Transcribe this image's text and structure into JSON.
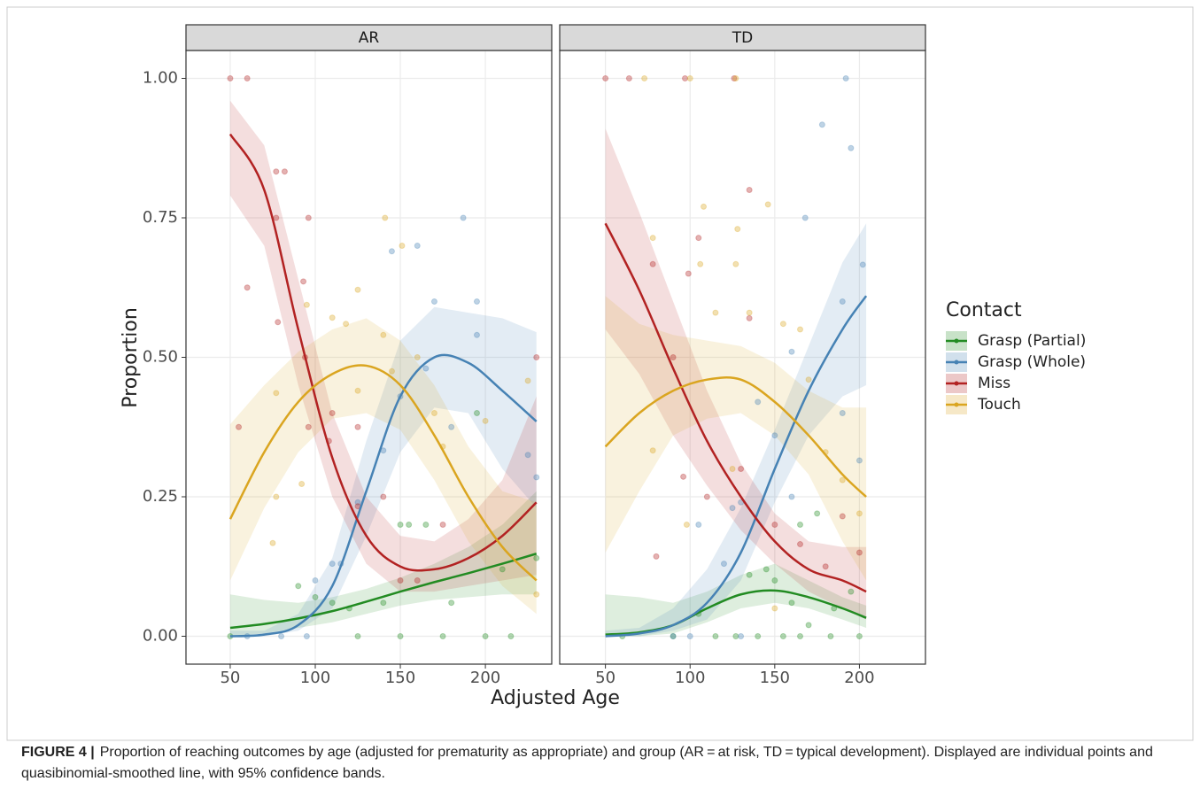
{
  "figure": {
    "x_label": "Adjusted Age",
    "y_label": "Proportion",
    "legend_title": "Contact",
    "caption_label": "FIGURE 4 |",
    "caption": "Proportion of reaching outcomes by age (adjusted for prematurity as appropriate) and group (AR = at risk, TD = typical development). Displayed are individual points and quasibinomial-smoothed line, with 95% confidence bands."
  },
  "chart_data": [
    {
      "type": "line",
      "panel": "AR",
      "xlim": [
        24,
        239
      ],
      "ylim": [
        -0.05,
        1.05
      ],
      "grid": true,
      "xticks": [
        50,
        100,
        150,
        200
      ],
      "yticks": [
        {
          "value": 0,
          "label": "0.00"
        },
        {
          "value": 0.25,
          "label": "0.25"
        },
        {
          "value": 0.5,
          "label": "0.50"
        },
        {
          "value": 0.75,
          "label": "0.75"
        },
        {
          "value": 1,
          "label": "1.00"
        }
      ],
      "x": [
        50,
        70,
        90,
        110,
        130,
        150,
        170,
        190,
        210,
        230
      ],
      "series": [
        {
          "name": "Grasp (Partial)",
          "color": "#228b22",
          "values": [
            0.015,
            0.022,
            0.032,
            0.045,
            0.062,
            0.08,
            0.097,
            0.113,
            0.13,
            0.148
          ],
          "lower": [
            0,
            0.005,
            0.015,
            0.025,
            0.04,
            0.055,
            0.065,
            0.07,
            0.075,
            0.075
          ],
          "upper": [
            0.075,
            0.065,
            0.06,
            0.07,
            0.085,
            0.105,
            0.13,
            0.16,
            0.2,
            0.26
          ],
          "points_x": [
            90,
            100,
            110,
            120,
            140,
            150,
            155,
            165,
            180,
            195,
            210,
            230,
            125,
            150,
            175,
            200,
            215,
            50
          ],
          "points_y": [
            0.09,
            0.07,
            0.06,
            0.05,
            0.06,
            0.2,
            0.2,
            0.2,
            0.06,
            0.4,
            0.12,
            0.14,
            0,
            0,
            0,
            0,
            0,
            0
          ]
        },
        {
          "name": "Grasp (Whole)",
          "color": "#4682b4",
          "values": [
            0,
            0.003,
            0.02,
            0.09,
            0.26,
            0.43,
            0.5,
            0.49,
            0.44,
            0.385
          ],
          "lower": [
            0,
            0,
            0.01,
            0.05,
            0.18,
            0.33,
            0.41,
            0.4,
            0.3,
            0.23
          ],
          "upper": [
            0.01,
            0.01,
            0.04,
            0.14,
            0.35,
            0.53,
            0.59,
            0.58,
            0.57,
            0.545
          ],
          "points_x": [
            145,
            160,
            187,
            195,
            170,
            195,
            165,
            140,
            150,
            110,
            115,
            125,
            180,
            225,
            230,
            100,
            60,
            80,
            95
          ],
          "points_y": [
            0.69,
            0.7,
            0.75,
            0.6,
            0.6,
            0.54,
            0.48,
            0.333,
            0.43,
            0.13,
            0.13,
            0.24,
            0.375,
            0.325,
            0.285,
            0.1,
            0,
            0,
            0
          ]
        },
        {
          "name": "Miss",
          "color": "#b22222",
          "values": [
            0.9,
            0.8,
            0.55,
            0.32,
            0.18,
            0.125,
            0.12,
            0.14,
            0.18,
            0.24
          ],
          "lower": [
            0.79,
            0.7,
            0.45,
            0.25,
            0.13,
            0.08,
            0.08,
            0.09,
            0.1,
            0.11
          ],
          "upper": [
            0.96,
            0.88,
            0.64,
            0.4,
            0.25,
            0.18,
            0.17,
            0.21,
            0.28,
            0.43
          ],
          "points_x": [
            50,
            60,
            60,
            77,
            77,
            82,
            78,
            93,
            96,
            94,
            96,
            108,
            110,
            125,
            125,
            140,
            150,
            160,
            175,
            230,
            55
          ],
          "points_y": [
            1,
            1,
            0.625,
            0.833,
            0.75,
            0.833,
            0.563,
            0.636,
            0.75,
            0.5,
            0.375,
            0.35,
            0.4,
            0.233,
            0.375,
            0.25,
            0.1,
            0.1,
            0.2,
            0.5,
            0.375
          ]
        },
        {
          "name": "Touch",
          "color": "#daa520",
          "values": [
            0.21,
            0.33,
            0.42,
            0.47,
            0.485,
            0.45,
            0.36,
            0.25,
            0.16,
            0.1
          ],
          "lower": [
            0.1,
            0.23,
            0.33,
            0.39,
            0.4,
            0.37,
            0.28,
            0.17,
            0.09,
            0.04
          ],
          "upper": [
            0.38,
            0.45,
            0.51,
            0.55,
            0.57,
            0.53,
            0.45,
            0.34,
            0.26,
            0.24
          ],
          "points_x": [
            77,
            77,
            75,
            92,
            95,
            110,
            125,
            125,
            141,
            151,
            140,
            145,
            160,
            170,
            175,
            200,
            225,
            230,
            118
          ],
          "points_y": [
            0.436,
            0.25,
            0.167,
            0.273,
            0.594,
            0.571,
            0.621,
            0.44,
            0.75,
            0.7,
            0.54,
            0.475,
            0.5,
            0.4,
            0.34,
            0.386,
            0.458,
            0.075,
            0.56
          ]
        }
      ]
    },
    {
      "type": "line",
      "panel": "TD",
      "xlim": [
        23,
        239
      ],
      "ylim": [
        -0.05,
        1.05
      ],
      "grid": true,
      "xticks": [
        50,
        100,
        150,
        200
      ],
      "x": [
        50,
        70,
        90,
        110,
        130,
        150,
        170,
        190,
        204
      ],
      "series": [
        {
          "name": "Grasp (Partial)",
          "color": "#228b22",
          "values": [
            0.003,
            0.007,
            0.02,
            0.05,
            0.075,
            0.082,
            0.07,
            0.05,
            0.033
          ],
          "lower": [
            0,
            0,
            0.005,
            0.025,
            0.05,
            0.06,
            0.05,
            0.03,
            0.015
          ],
          "upper": [
            0.075,
            0.07,
            0.06,
            0.08,
            0.11,
            0.13,
            0.1,
            0.07,
            0.055
          ],
          "points_x": [
            135,
            145,
            160,
            170,
            150,
            165,
            105,
            175,
            185,
            195,
            115,
            127,
            140,
            155,
            165,
            183,
            200,
            90,
            60
          ],
          "points_y": [
            0.11,
            0.12,
            0.06,
            0.02,
            0.1,
            0.2,
            0.04,
            0.22,
            0.05,
            0.08,
            0,
            0,
            0,
            0,
            0,
            0,
            0,
            0,
            0
          ]
        },
        {
          "name": "Grasp (Whole)",
          "color": "#4682b4",
          "values": [
            0,
            0.005,
            0.02,
            0.06,
            0.15,
            0.3,
            0.44,
            0.55,
            0.61
          ],
          "lower": [
            0,
            0,
            0.01,
            0.03,
            0.1,
            0.24,
            0.36,
            0.43,
            0.45
          ],
          "upper": [
            0.01,
            0.015,
            0.05,
            0.12,
            0.23,
            0.37,
            0.52,
            0.67,
            0.74
          ],
          "points_x": [
            178,
            195,
            192,
            168,
            202,
            190,
            160,
            150,
            140,
            130,
            125,
            120,
            105,
            160,
            190,
            200,
            90,
            100,
            130
          ],
          "points_y": [
            0.917,
            0.875,
            1,
            0.75,
            0.666,
            0.6,
            0.51,
            0.36,
            0.42,
            0.24,
            0.23,
            0.13,
            0.2,
            0.25,
            0.4,
            0.315,
            0,
            0,
            0
          ]
        },
        {
          "name": "Miss",
          "color": "#b22222",
          "values": [
            0.74,
            0.62,
            0.48,
            0.35,
            0.25,
            0.17,
            0.12,
            0.1,
            0.08
          ],
          "lower": [
            0.55,
            0.47,
            0.36,
            0.27,
            0.19,
            0.13,
            0.08,
            0.05,
            0.03
          ],
          "upper": [
            0.91,
            0.76,
            0.6,
            0.44,
            0.31,
            0.22,
            0.17,
            0.16,
            0.16
          ],
          "points_x": [
            50,
            64,
            97,
            126,
            78,
            105,
            99,
            135,
            90,
            110,
            130,
            150,
            165,
            180,
            190,
            200,
            96,
            80,
            135
          ],
          "points_y": [
            1,
            1,
            1,
            1,
            0.667,
            0.714,
            0.65,
            0.8,
            0.5,
            0.25,
            0.3,
            0.2,
            0.165,
            0.125,
            0.215,
            0.15,
            0.286,
            0.143,
            0.57
          ]
        },
        {
          "name": "Touch",
          "color": "#daa520",
          "values": [
            0.34,
            0.4,
            0.44,
            0.46,
            0.46,
            0.42,
            0.36,
            0.29,
            0.25
          ],
          "lower": [
            0.15,
            0.26,
            0.36,
            0.39,
            0.4,
            0.36,
            0.29,
            0.17,
            0.1
          ],
          "upper": [
            0.61,
            0.56,
            0.54,
            0.53,
            0.52,
            0.49,
            0.44,
            0.41,
            0.41
          ],
          "points_x": [
            73,
            100,
            127,
            78,
            108,
            128,
            146,
            106,
            127,
            135,
            155,
            165,
            115,
            170,
            180,
            190,
            200,
            78,
            98,
            125,
            150
          ],
          "points_y": [
            1,
            1,
            1,
            0.714,
            0.77,
            0.73,
            0.774,
            0.667,
            0.667,
            0.58,
            0.56,
            0.55,
            0.58,
            0.46,
            0.33,
            0.28,
            0.22,
            0.333,
            0.2,
            0.3,
            0.05
          ]
        }
      ]
    }
  ]
}
